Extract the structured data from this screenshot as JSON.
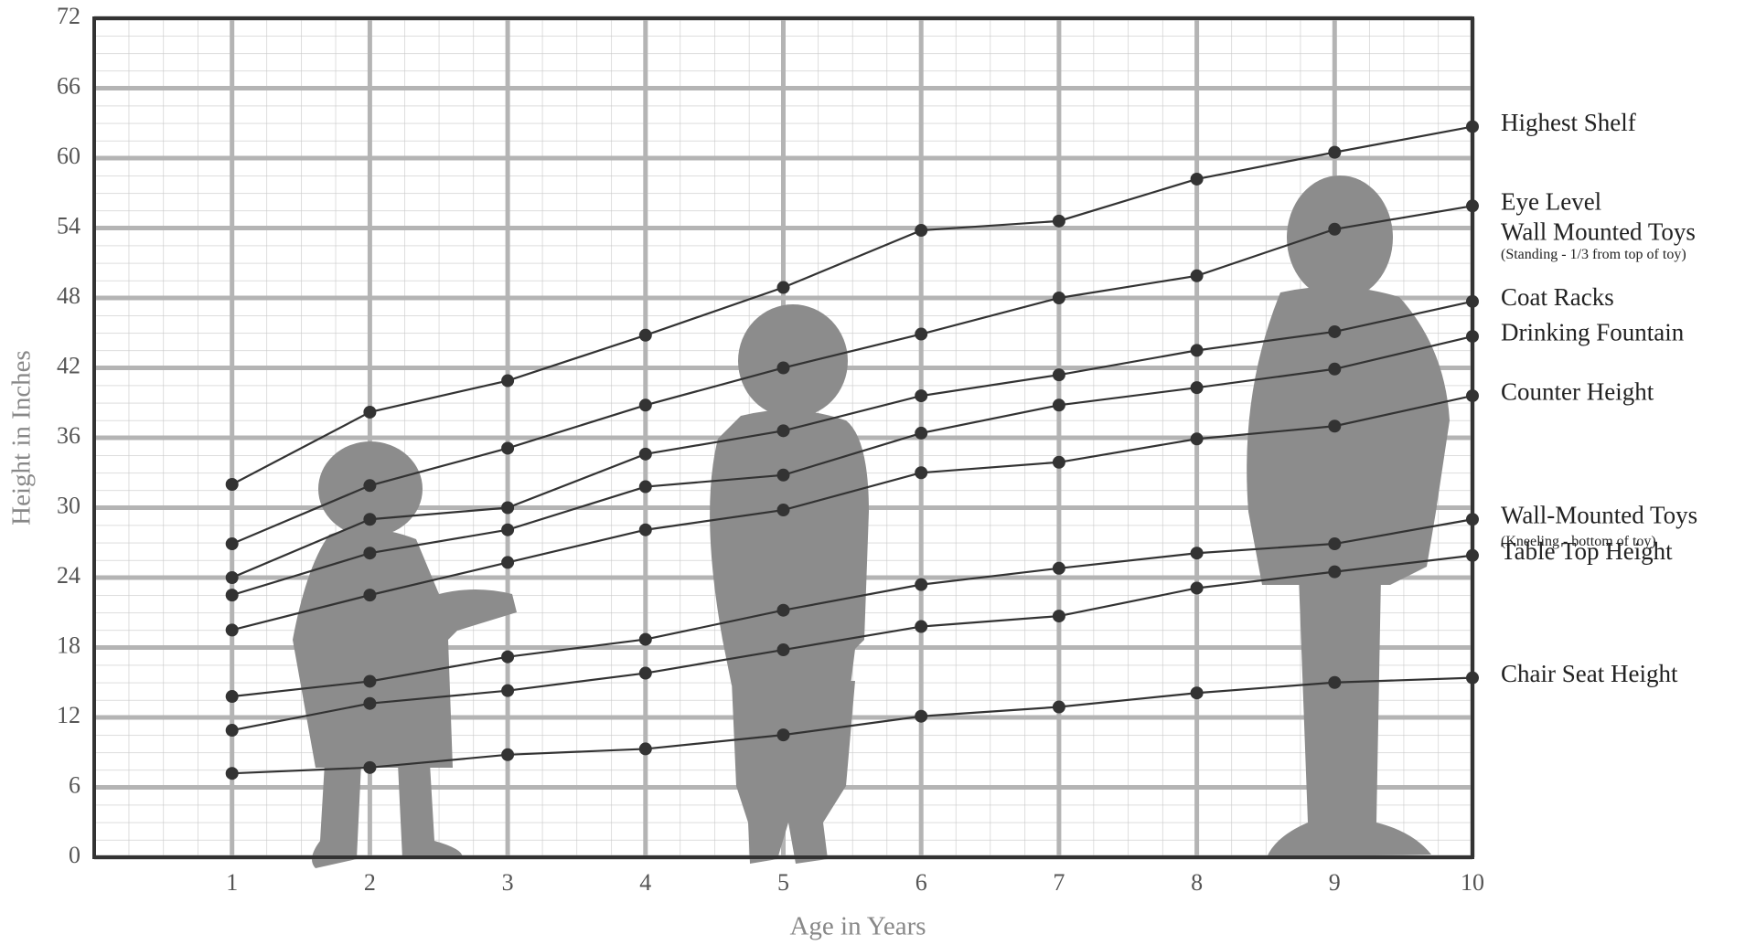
{
  "chart_data": {
    "type": "line",
    "x_label": "Age in Years",
    "y_label": "Height in Inches",
    "x": [
      1,
      2,
      3,
      4,
      5,
      6,
      7,
      8,
      9,
      10
    ],
    "xlim": [
      0,
      10
    ],
    "xticks": [
      1,
      2,
      3,
      4,
      5,
      6,
      7,
      8,
      9,
      10
    ],
    "ylim": [
      0,
      72
    ],
    "yticks": [
      0,
      6,
      12,
      18,
      24,
      30,
      36,
      42,
      48,
      54,
      60,
      66,
      72
    ],
    "grid": true,
    "series": [
      {
        "name": "Highest Shelf",
        "color": "#333333",
        "values": [
          32,
          38.2,
          40.9,
          44.8,
          48.9,
          53.8,
          54.6,
          58.2,
          60.5,
          62.7
        ]
      },
      {
        "name": "Eye Level",
        "notes": [
          "Wall Mounted Toys",
          "(Standing - 1/3 from top of toy)"
        ],
        "color": "#333333",
        "values": [
          26.9,
          31.9,
          35.1,
          38.8,
          42,
          44.9,
          48,
          49.9,
          53.9,
          55.9
        ]
      },
      {
        "name": "Coat Racks",
        "color": "#333333",
        "values": [
          24,
          29,
          30,
          34.6,
          36.6,
          39.6,
          41.4,
          43.5,
          45.1,
          47.7
        ]
      },
      {
        "name": "Drinking Fountain",
        "color": "#333333",
        "values": [
          22.5,
          26.1,
          28.1,
          31.8,
          32.8,
          36.4,
          38.8,
          40.3,
          41.9,
          44.7
        ]
      },
      {
        "name": "Counter Height",
        "color": "#333333",
        "values": [
          19.5,
          22.5,
          25.3,
          28.1,
          29.8,
          33,
          33.9,
          35.9,
          37,
          39.6
        ]
      },
      {
        "name": "Wall-Mounted Toys",
        "notes": [
          "(Kneeling - bottom of toy)"
        ],
        "color": "#333333",
        "values": [
          13.8,
          15.1,
          17.2,
          18.7,
          21.2,
          23.4,
          24.8,
          26.1,
          26.9,
          29
        ]
      },
      {
        "name": "Table Top Height",
        "color": "#333333",
        "values": [
          10.9,
          13.2,
          14.3,
          15.8,
          17.8,
          19.8,
          20.7,
          23.1,
          24.5,
          25.9
        ]
      },
      {
        "name": "Chair Seat Height",
        "color": "#333333",
        "values": [
          7.2,
          7.7,
          8.8,
          9.3,
          10.5,
          12.1,
          12.9,
          14.1,
          15,
          15.4
        ]
      }
    ]
  }
}
